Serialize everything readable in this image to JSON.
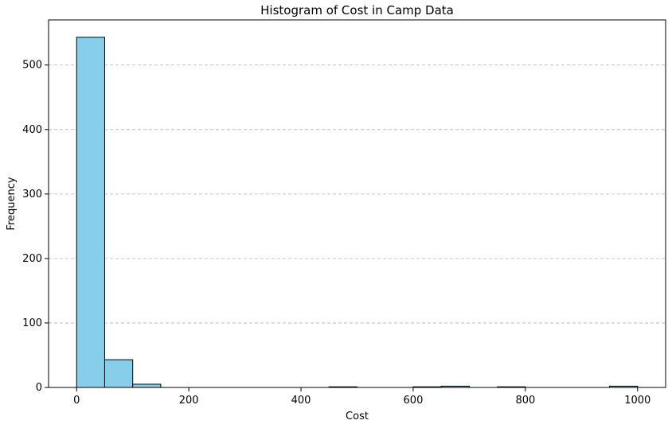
{
  "chart_data": {
    "type": "bar",
    "title": "Histogram of Cost in Camp Data",
    "xlabel": "Cost",
    "ylabel": "Frequency",
    "xlim": [
      -50,
      1050
    ],
    "ylim": [
      0,
      570
    ],
    "xticks": [
      0,
      200,
      400,
      600,
      800,
      1000
    ],
    "yticks": [
      0,
      100,
      200,
      300,
      400,
      500
    ],
    "grid": "y-dashed",
    "bar_color": "#87CEEB",
    "edge_color": "#000000",
    "grid_color": "#b0b0b0",
    "bins": [
      {
        "x0": 0,
        "x1": 50,
        "value": 543
      },
      {
        "x0": 50,
        "x1": 100,
        "value": 43
      },
      {
        "x0": 100,
        "x1": 150,
        "value": 5
      },
      {
        "x0": 150,
        "x1": 200,
        "value": 0
      },
      {
        "x0": 200,
        "x1": 250,
        "value": 0
      },
      {
        "x0": 250,
        "x1": 300,
        "value": 0
      },
      {
        "x0": 300,
        "x1": 350,
        "value": 0
      },
      {
        "x0": 350,
        "x1": 400,
        "value": 0
      },
      {
        "x0": 400,
        "x1": 450,
        "value": 0
      },
      {
        "x0": 450,
        "x1": 500,
        "value": 1
      },
      {
        "x0": 500,
        "x1": 550,
        "value": 0
      },
      {
        "x0": 550,
        "x1": 600,
        "value": 0
      },
      {
        "x0": 600,
        "x1": 650,
        "value": 1
      },
      {
        "x0": 650,
        "x1": 700,
        "value": 2
      },
      {
        "x0": 700,
        "x1": 750,
        "value": 0
      },
      {
        "x0": 750,
        "x1": 800,
        "value": 1
      },
      {
        "x0": 800,
        "x1": 850,
        "value": 0
      },
      {
        "x0": 850,
        "x1": 900,
        "value": 0
      },
      {
        "x0": 900,
        "x1": 950,
        "value": 0
      },
      {
        "x0": 950,
        "x1": 1000,
        "value": 2
      }
    ]
  }
}
